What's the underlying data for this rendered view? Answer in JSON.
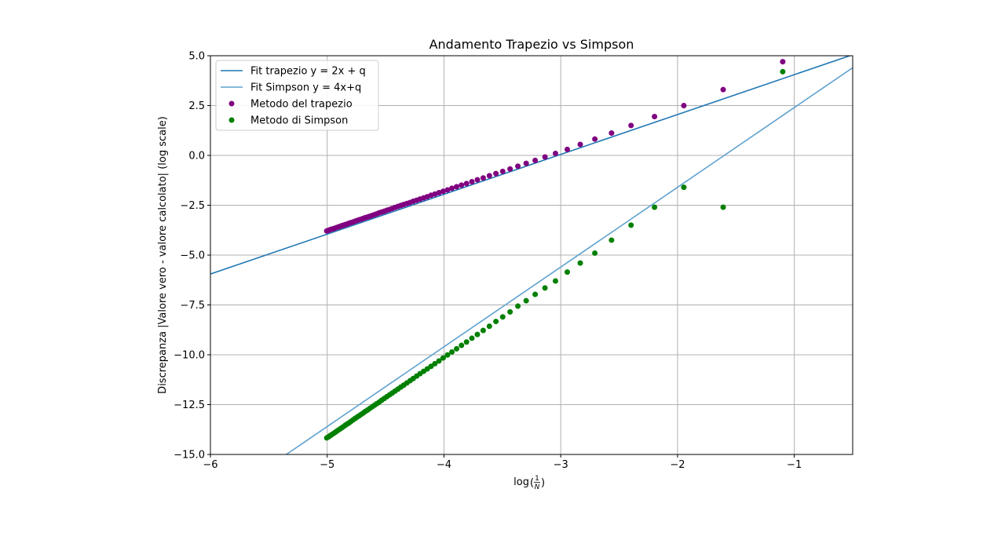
{
  "chart_data": {
    "type": "scatter",
    "title": "Andamento Trapezio vs Simpson",
    "xlabel": "log",
    "xlabel_frac_num": "1",
    "xlabel_frac_den": "N",
    "ylabel": "Discrepanza |Valore vero - valore calcolato| (log scale)",
    "xlim": [
      -6,
      -0.5
    ],
    "ylim": [
      -15,
      5
    ],
    "xticks": [
      {
        "value": -6,
        "label": "−6"
      },
      {
        "value": -5,
        "label": "−5"
      },
      {
        "value": -4,
        "label": "−4"
      },
      {
        "value": -3,
        "label": "−3"
      },
      {
        "value": -2,
        "label": "−2"
      },
      {
        "value": -1,
        "label": "−1"
      }
    ],
    "yticks": [
      {
        "value": -15,
        "label": "−15.0"
      },
      {
        "value": -12.5,
        "label": "−12.5"
      },
      {
        "value": -10,
        "label": "−10.0"
      },
      {
        "value": -7.5,
        "label": "−7.5"
      },
      {
        "value": -5,
        "label": "−5.0"
      },
      {
        "value": -2.5,
        "label": "−2.5"
      },
      {
        "value": 0,
        "label": "0.0"
      },
      {
        "value": 2.5,
        "label": "2.5"
      },
      {
        "value": 5,
        "label": "5.0"
      }
    ],
    "grid": true,
    "legend_position": "top-left",
    "fit_lines": [
      {
        "name": "Fit trapezio y = 2x + q",
        "slope": 2,
        "intercept": 6.05,
        "color": "#1f77b4"
      },
      {
        "name": "Fit Simpson y = 4x+q",
        "slope": 4,
        "intercept": 6.4,
        "color": "#5fa2cf"
      }
    ],
    "series": [
      {
        "name": "Metodo del trapezio",
        "color": "#800080",
        "x": [
          -1.099,
          -1.609,
          -1.946,
          -2.197,
          -2.398,
          -2.565,
          -2.708,
          -2.833,
          -2.944,
          -3.045,
          -3.135,
          -3.219,
          -3.296,
          -3.367,
          -3.434,
          -3.497,
          -3.555,
          -3.611,
          -3.664,
          -3.714,
          -3.761,
          -3.807,
          -3.85,
          -3.892,
          -3.932,
          -3.97,
          -4.007,
          -4.043,
          -4.078,
          -4.111,
          -4.143,
          -4.174,
          -4.205,
          -4.234,
          -4.263,
          -4.29,
          -4.317,
          -4.344,
          -4.369,
          -4.394,
          -4.419,
          -4.443,
          -4.466,
          -4.489,
          -4.511,
          -4.533,
          -4.554,
          -4.575,
          -4.595,
          -4.615,
          -4.635,
          -4.654,
          -4.673,
          -4.691,
          -4.709,
          -4.727,
          -4.745,
          -4.762,
          -4.779,
          -4.796,
          -4.812,
          -4.828,
          -4.844,
          -4.86,
          -4.875,
          -4.89,
          -4.905,
          -4.92,
          -4.934,
          -4.949,
          -4.963,
          -4.977,
          -4.99,
          -5.004
        ],
        "y": [
          4.7,
          3.3,
          2.5,
          1.95,
          1.5,
          1.12,
          0.82,
          0.55,
          0.3,
          0.1,
          -0.08,
          -0.25,
          -0.4,
          -0.54,
          -0.68,
          -0.8,
          -0.91,
          -1.02,
          -1.13,
          -1.22,
          -1.32,
          -1.41,
          -1.49,
          -1.57,
          -1.65,
          -1.73,
          -1.8,
          -1.87,
          -1.94,
          -2.0,
          -2.07,
          -2.13,
          -2.19,
          -2.25,
          -2.3,
          -2.36,
          -2.41,
          -2.46,
          -2.51,
          -2.56,
          -2.61,
          -2.66,
          -2.71,
          -2.75,
          -2.8,
          -2.84,
          -2.88,
          -2.93,
          -2.97,
          -3.01,
          -3.05,
          -3.09,
          -3.12,
          -3.16,
          -3.2,
          -3.23,
          -3.27,
          -3.3,
          -3.34,
          -3.37,
          -3.4,
          -3.44,
          -3.47,
          -3.5,
          -3.53,
          -3.56,
          -3.59,
          -3.62,
          -3.65,
          -3.68,
          -3.7,
          -3.73,
          -3.76,
          -3.79
        ]
      },
      {
        "name": "Metodo di Simpson",
        "color": "#008000",
        "x": [
          -1.099,
          -1.609,
          -1.946,
          -2.197,
          -2.398,
          -2.565,
          -2.708,
          -2.833,
          -2.944,
          -3.045,
          -3.135,
          -3.219,
          -3.296,
          -3.367,
          -3.434,
          -3.497,
          -3.555,
          -3.611,
          -3.664,
          -3.714,
          -3.761,
          -3.807,
          -3.85,
          -3.892,
          -3.932,
          -3.97,
          -4.007,
          -4.043,
          -4.078,
          -4.111,
          -4.143,
          -4.174,
          -4.205,
          -4.234,
          -4.263,
          -4.29,
          -4.317,
          -4.344,
          -4.369,
          -4.394,
          -4.419,
          -4.443,
          -4.466,
          -4.489,
          -4.511,
          -4.533,
          -4.554,
          -4.575,
          -4.595,
          -4.615,
          -4.635,
          -4.654,
          -4.673,
          -4.691,
          -4.709,
          -4.727,
          -4.745,
          -4.762,
          -4.779,
          -4.796,
          -4.812,
          -4.828,
          -4.844,
          -4.86,
          -4.875,
          -4.89,
          -4.905,
          -4.92,
          -4.934,
          -4.949,
          -4.963,
          -4.977,
          -4.99,
          -5.004
        ],
        "y": [
          4.2,
          -2.6,
          -1.6,
          -2.6,
          -3.5,
          -4.25,
          -4.9,
          -5.4,
          -5.85,
          -6.3,
          -6.65,
          -6.97,
          -7.29,
          -7.56,
          -7.85,
          -8.1,
          -8.33,
          -8.57,
          -8.78,
          -8.98,
          -9.17,
          -9.36,
          -9.53,
          -9.7,
          -9.86,
          -10.01,
          -10.16,
          -10.31,
          -10.45,
          -10.58,
          -10.71,
          -10.83,
          -10.95,
          -11.07,
          -11.19,
          -11.3,
          -11.41,
          -11.52,
          -11.62,
          -11.72,
          -11.82,
          -11.92,
          -12.01,
          -12.1,
          -12.19,
          -12.28,
          -12.37,
          -12.45,
          -12.53,
          -12.61,
          -12.69,
          -12.77,
          -12.84,
          -12.92,
          -12.99,
          -13.06,
          -13.13,
          -13.2,
          -13.27,
          -13.34,
          -13.41,
          -13.47,
          -13.53,
          -13.6,
          -13.66,
          -13.72,
          -13.78,
          -13.84,
          -13.9,
          -13.96,
          -14.01,
          -14.07,
          -14.12,
          -14.17
        ]
      }
    ]
  }
}
